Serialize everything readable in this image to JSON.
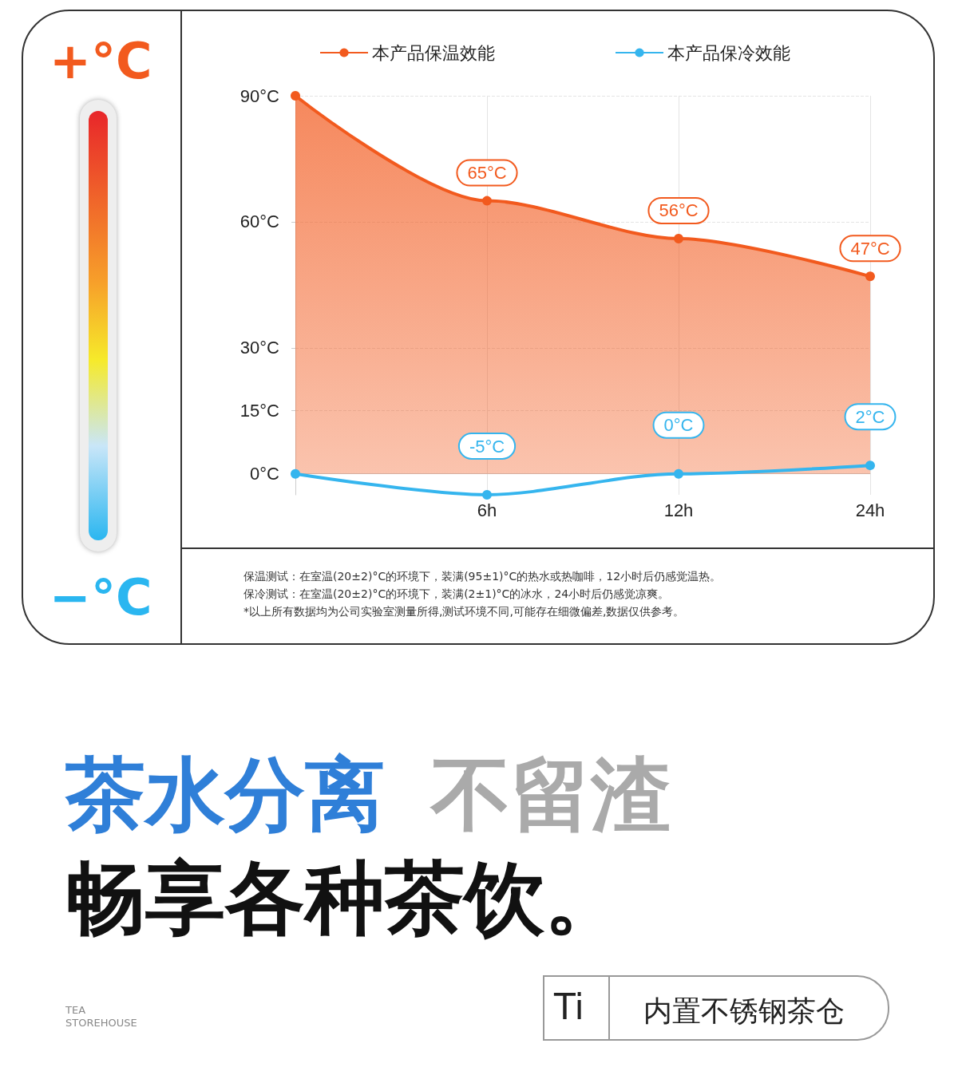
{
  "chart_data": {
    "type": "area",
    "categories": [
      null,
      "6h",
      "12h",
      "24h"
    ],
    "series": [
      {
        "name": "本产品保温效能",
        "color": "#f25a1e",
        "values": [
          90,
          65,
          56,
          47
        ],
        "value_labels": [
          null,
          "65°C",
          "56°C",
          "47°C"
        ]
      },
      {
        "name": "本产品保冷效能",
        "type": "line",
        "color": "#35b5ee",
        "values": [
          0,
          -5,
          0,
          2
        ],
        "value_labels": [
          null,
          "-5°C",
          "0°C",
          "2°C"
        ]
      }
    ],
    "ylim": [
      -5,
      90
    ],
    "yticks": [
      {
        "value": 0,
        "label": "0°C"
      },
      {
        "value": 15,
        "label": "15°C"
      },
      {
        "value": 30,
        "label": "30°C"
      },
      {
        "value": 60,
        "label": "60°C"
      },
      {
        "value": 90,
        "label": "90°C"
      }
    ],
    "grid": true,
    "legend": "top",
    "marker": "circle",
    "line_style": "solid",
    "annotations": [
      "+°C",
      "−°C",
      "保温测试：在室温(20±2)°C的环境下，装满(95±1)°C的热水或热咖啡，12小时后仍感觉温热。",
      "保冷测试：在室温(20±2)°C的环境下，装满(2±1)°C的冰水，24小时后仍感觉凉爽。",
      "*以上所有数据均为公司实验室测量所得,测试环境不同,可能存在细微偏差,数据仅供参考。",
      "茶水分离",
      "不留渣",
      "畅享各种茶饮。",
      "TEA",
      "STOREHOUSE",
      "Ti",
      "内置不锈钢茶仓"
    ]
  }
}
